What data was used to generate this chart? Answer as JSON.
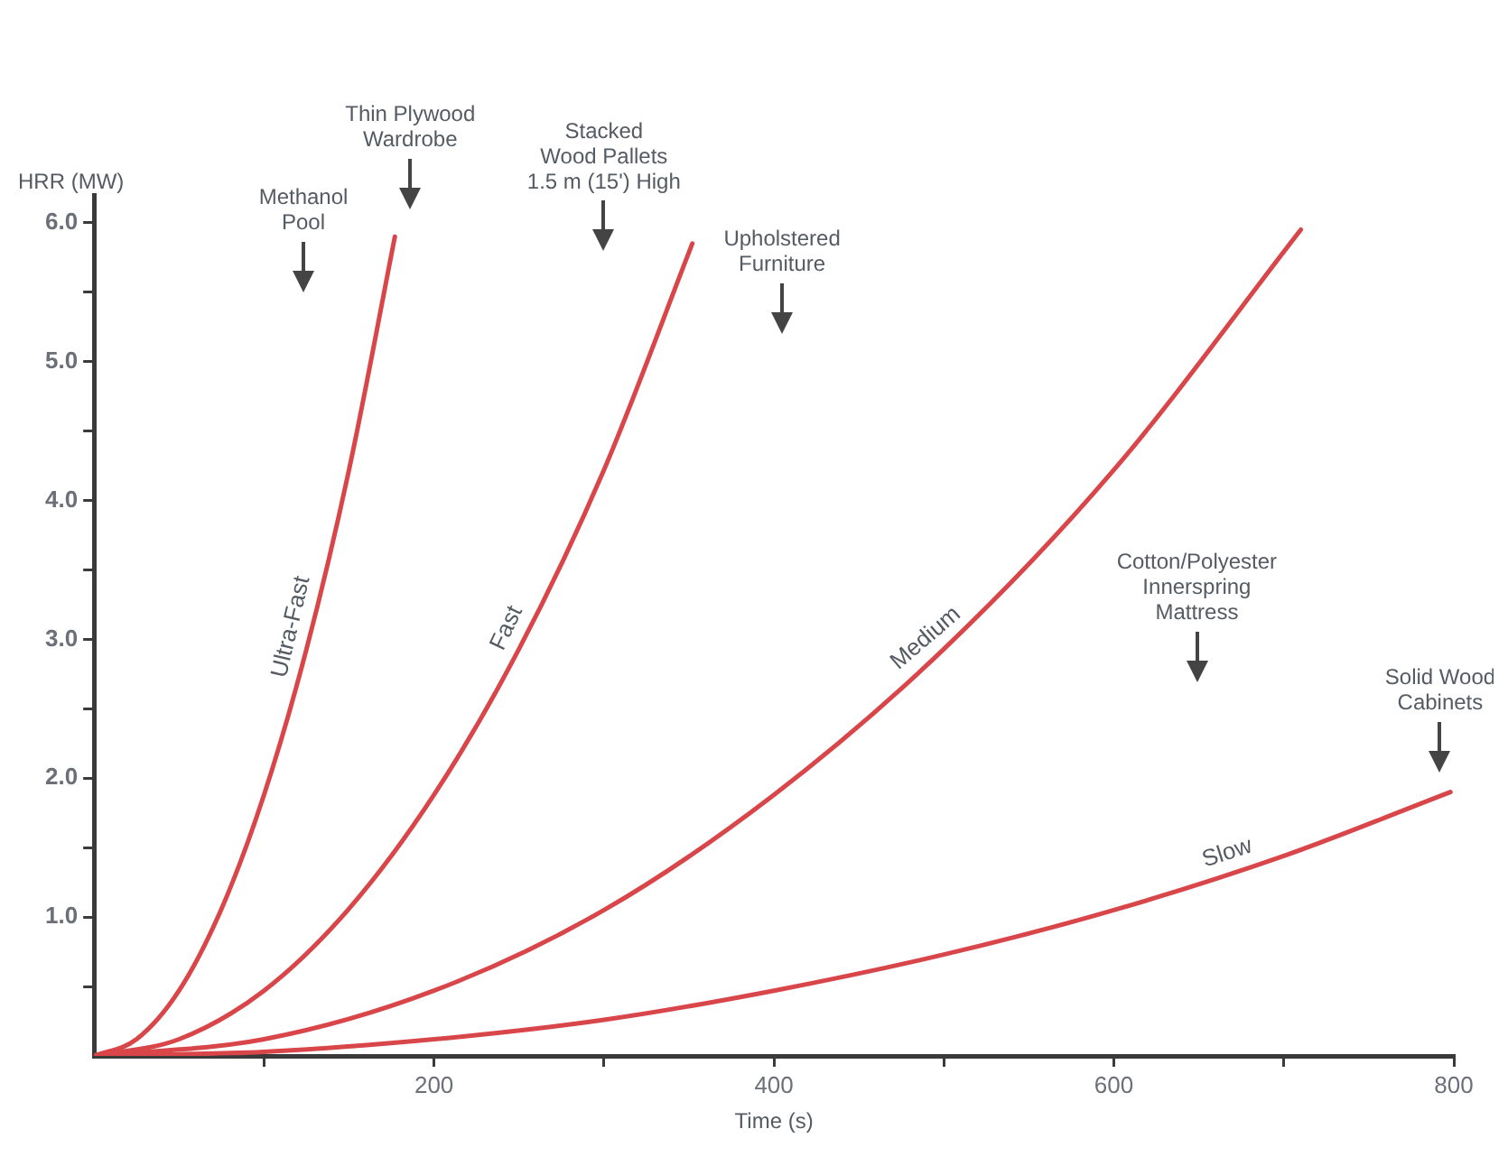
{
  "chart_data": {
    "type": "line",
    "xlabel": "Time (s)",
    "ylabel": "HRR (MW)",
    "xlim": [
      0,
      800
    ],
    "ylim": [
      0,
      6.2
    ],
    "xticks": [
      {
        "value": 100,
        "label": null
      },
      {
        "value": 200,
        "label": "200"
      },
      {
        "value": 300,
        "label": null
      },
      {
        "value": 400,
        "label": "400"
      },
      {
        "value": 500,
        "label": null
      },
      {
        "value": 600,
        "label": "600"
      },
      {
        "value": 700,
        "label": null
      },
      {
        "value": 800,
        "label": "800"
      }
    ],
    "yticks": [
      {
        "value": 0.5,
        "label": null
      },
      {
        "value": 1,
        "label": "1.0"
      },
      {
        "value": 1.5,
        "label": null
      },
      {
        "value": 2,
        "label": "2.0"
      },
      {
        "value": 2.5,
        "label": null
      },
      {
        "value": 3,
        "label": "3.0"
      },
      {
        "value": 3.5,
        "label": null
      },
      {
        "value": 4,
        "label": "4.0"
      },
      {
        "value": 4.5,
        "label": null
      },
      {
        "value": 5,
        "label": "5.0"
      },
      {
        "value": 5.5,
        "label": null
      },
      {
        "value": 6,
        "label": "6.0"
      }
    ],
    "series": [
      {
        "name": "Ultra-Fast",
        "color": "#d9464a",
        "x": [
          0,
          25,
          50,
          75,
          100,
          125,
          150,
          177
        ],
        "values": [
          0,
          0.12,
          0.47,
          1.06,
          1.88,
          2.93,
          4.22,
          5.9
        ]
      },
      {
        "name": "Fast",
        "color": "#d9464a",
        "x": [
          0,
          50,
          100,
          150,
          200,
          250,
          300,
          352
        ],
        "values": [
          0,
          0.12,
          0.47,
          1.06,
          1.88,
          2.93,
          4.22,
          5.85
        ]
      },
      {
        "name": "Medium",
        "color": "#d9464a",
        "x": [
          0,
          100,
          200,
          300,
          400,
          500,
          600,
          710
        ],
        "values": [
          0,
          0.12,
          0.47,
          1.05,
          1.88,
          2.93,
          4.22,
          5.95
        ]
      },
      {
        "name": "Slow",
        "color": "#d9464a",
        "x": [
          0,
          100,
          200,
          300,
          400,
          500,
          600,
          700,
          798
        ],
        "values": [
          0,
          0.03,
          0.12,
          0.26,
          0.47,
          0.73,
          1.05,
          1.44,
          1.9
        ]
      }
    ],
    "annotations": [
      "Methanol\nPool",
      "Thin Plywood\nWardrobe",
      "Stacked\nWood Pallets\n1.5 m (15') High",
      "Upholstered\nFurniture",
      "Cotton/Polyester\nInnerspring\nMattress",
      "Solid Wood\nCabinets"
    ],
    "grid": false,
    "legend": false,
    "marker": "none",
    "line_style": "solid"
  }
}
